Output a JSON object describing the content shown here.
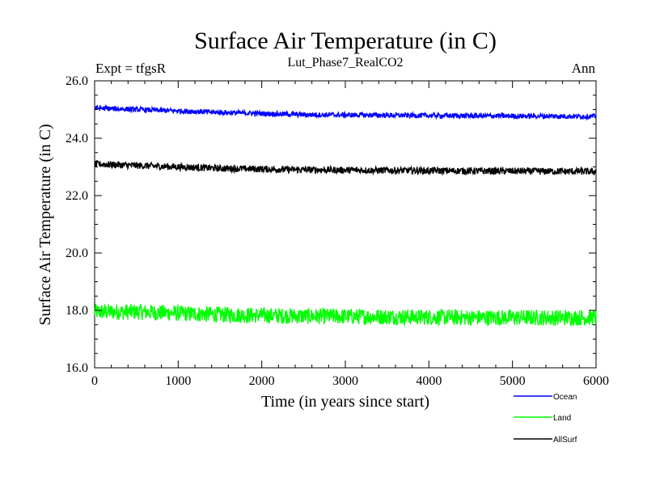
{
  "chart_data": {
    "type": "line",
    "title": "Surface Air Temperature (in C)",
    "subtitle": "Lut_Phase7_RealCO2",
    "left_annotation": "Expt = tfgsR",
    "right_annotation": "Ann",
    "xlabel": "Time (in years since start)",
    "ylabel": "Surface Air Temperature (in C)",
    "xlim": [
      0,
      6000
    ],
    "ylim": [
      16.0,
      26.0
    ],
    "x_ticks": [
      0,
      1000,
      2000,
      3000,
      4000,
      5000,
      6000
    ],
    "x_tick_labels": [
      "0",
      "1000",
      "2000",
      "3000",
      "4000",
      "5000",
      "6000"
    ],
    "y_ticks": [
      16.0,
      18.0,
      20.0,
      22.0,
      24.0,
      26.0
    ],
    "y_tick_labels": [
      "16.0",
      "18.0",
      "20.0",
      "22.0",
      "24.0",
      "26.0"
    ],
    "legend_position": "bottom-right, below plot",
    "series": [
      {
        "name": "Ocean",
        "color": "#0000ff",
        "noise_amplitude": 0.09,
        "trend": {
          "x": [
            0,
            500,
            1500,
            2500,
            3500,
            4500,
            6000
          ],
          "y": [
            25.05,
            25.0,
            24.9,
            24.82,
            24.8,
            24.78,
            24.76
          ]
        }
      },
      {
        "name": "Land",
        "color": "#00ff00",
        "noise_amplitude": 0.28,
        "trend": {
          "x": [
            0,
            500,
            1500,
            2500,
            3500,
            4500,
            6000
          ],
          "y": [
            17.95,
            17.95,
            17.85,
            17.8,
            17.78,
            17.75,
            17.75
          ]
        }
      },
      {
        "name": "AllSurf",
        "color": "#000000",
        "noise_amplitude": 0.12,
        "trend": {
          "x": [
            0,
            500,
            1500,
            2500,
            3500,
            4500,
            6000
          ],
          "y": [
            23.1,
            23.05,
            22.95,
            22.9,
            22.88,
            22.86,
            22.84
          ]
        }
      }
    ]
  }
}
